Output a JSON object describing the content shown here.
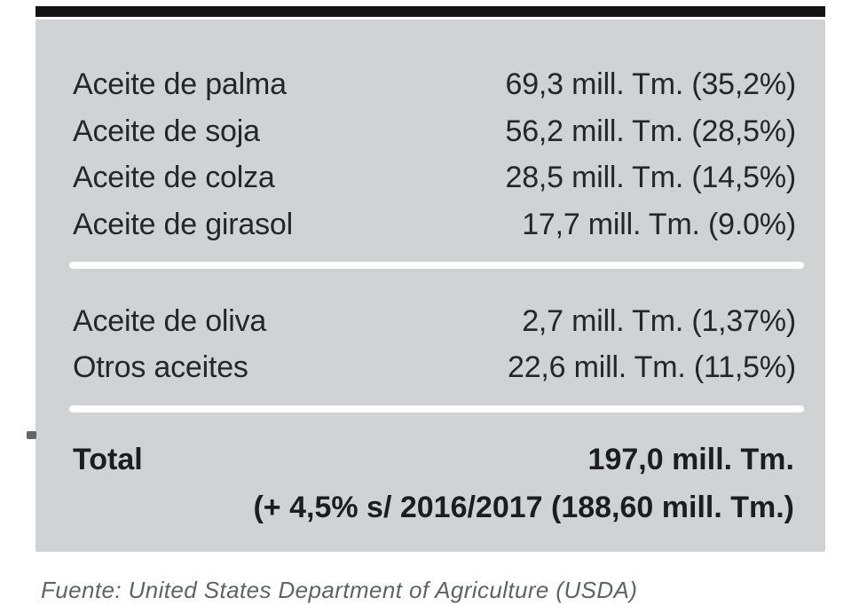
{
  "panel": {
    "rows": [
      {
        "label": "Aceite de palma",
        "value": "69,3 mill. Tm. (35,2%)"
      },
      {
        "label": "Aceite de soja",
        "value": "56,2 mill. Tm. (28,5%)"
      },
      {
        "label": "Aceite de colza",
        "value": "28,5 mill. Tm. (14,5%)"
      },
      {
        "label": "Aceite de girasol",
        "value": "17,7 mill. Tm. (9.0%)"
      },
      {
        "label": "Aceite de oliva",
        "value": "2,7 mill. Tm. (1,37%)"
      },
      {
        "label": "Otros aceites",
        "value": "22,6 mill. Tm. (11,5%)"
      }
    ],
    "total": {
      "label": "Total",
      "value": "197,0 mill. Tm.",
      "note": "(+ 4,5% s/ 2016/2017 (188,60 mill. Tm.)"
    }
  },
  "footer": {
    "source": "Fuente: United States Department of Agriculture (USDA)"
  },
  "colors": {
    "panel_bg": "#d1d2d4",
    "text": "#242629",
    "top_rule": "#131313",
    "divider": "#ffffff",
    "footer_text": "#606366"
  }
}
